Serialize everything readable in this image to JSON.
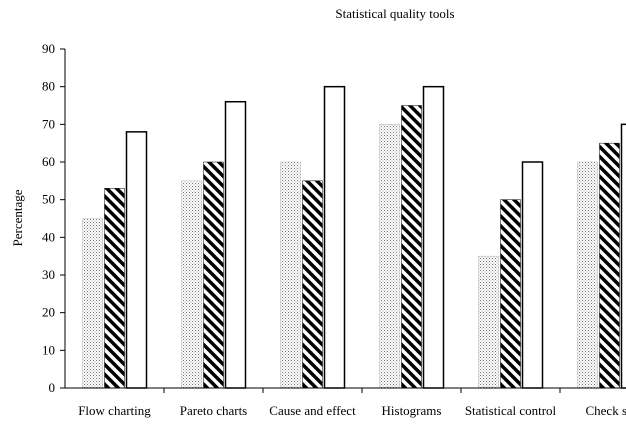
{
  "chart_data": {
    "type": "bar",
    "title": "Statistical quality tools",
    "ylabel": "Percentage",
    "categories": [
      "Flow charting",
      "Pareto charts",
      "Cause and effect",
      "Histograms",
      "Statistical control",
      "Check sh"
    ],
    "series": [
      {
        "pattern": "dots",
        "values": [
          45,
          55,
          60,
          70,
          35,
          60
        ]
      },
      {
        "pattern": "hatch",
        "values": [
          53,
          60,
          55,
          75,
          50,
          65
        ]
      },
      {
        "pattern": "none",
        "values": [
          68,
          76,
          80,
          80,
          60,
          70
        ]
      }
    ],
    "ylim": [
      0,
      90
    ],
    "yticks": [
      0,
      10,
      20,
      30,
      40,
      50,
      60,
      70,
      80,
      90
    ],
    "grid": false
  }
}
